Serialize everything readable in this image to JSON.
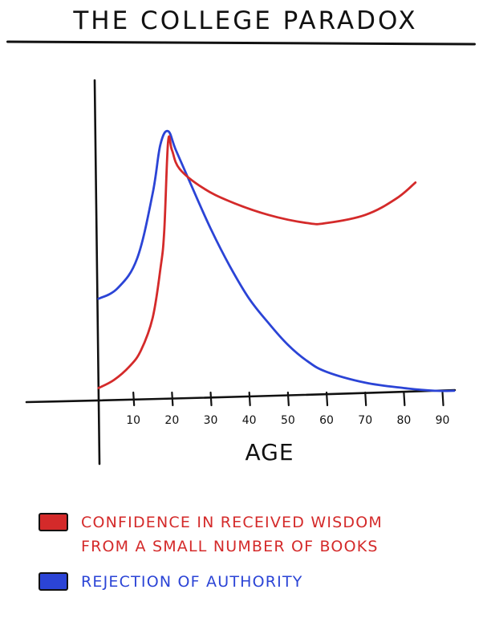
{
  "title": "THE COLLEGE PARADOX",
  "colors": {
    "ink": "#111111",
    "red": "#d42a2a",
    "blue": "#2b44d6"
  },
  "legend": [
    {
      "color": "#d42a2a",
      "lines": [
        "CONFIDENCE IN RECEIVED WISDOM",
        "FROM A SMALL NUMBER OF BOOKS"
      ]
    },
    {
      "color": "#2b44d6",
      "lines": [
        "REJECTION OF AUTHORITY"
      ]
    }
  ],
  "chart_data": {
    "type": "line",
    "title": "THE COLLEGE PARADOX",
    "xlabel": "AGE",
    "ylabel": "",
    "x_ticks": [
      10,
      20,
      30,
      40,
      50,
      60,
      70,
      80,
      90
    ],
    "xlim": [
      0,
      93
    ],
    "ylim": [
      0,
      100
    ],
    "grid": false,
    "legend_position": "bottom",
    "series": [
      {
        "name": "CONFIDENCE IN RECEIVED WISDOM FROM A SMALL NUMBER OF BOOKS",
        "color": "#d42a2a",
        "points": [
          [
            1,
            4
          ],
          [
            5,
            7
          ],
          [
            9,
            12
          ],
          [
            12,
            18
          ],
          [
            15,
            30
          ],
          [
            17,
            48
          ],
          [
            18,
            62
          ],
          [
            19,
            95
          ],
          [
            20,
            92
          ],
          [
            22,
            85
          ],
          [
            28,
            78
          ],
          [
            35,
            73
          ],
          [
            45,
            68
          ],
          [
            55,
            65
          ],
          [
            60,
            65
          ],
          [
            70,
            68
          ],
          [
            78,
            74
          ],
          [
            83,
            80
          ]
        ]
      },
      {
        "name": "REJECTION OF AUTHORITY",
        "color": "#2b44d6",
        "points": [
          [
            1,
            37
          ],
          [
            6,
            41
          ],
          [
            11,
            52
          ],
          [
            15,
            76
          ],
          [
            17,
            94
          ],
          [
            19,
            99
          ],
          [
            21,
            92
          ],
          [
            25,
            79
          ],
          [
            30,
            63
          ],
          [
            35,
            49
          ],
          [
            40,
            37
          ],
          [
            45,
            28
          ],
          [
            50,
            20
          ],
          [
            55,
            14
          ],
          [
            60,
            10
          ],
          [
            70,
            6
          ],
          [
            80,
            4
          ],
          [
            88,
            3
          ],
          [
            93,
            3
          ]
        ]
      }
    ]
  }
}
